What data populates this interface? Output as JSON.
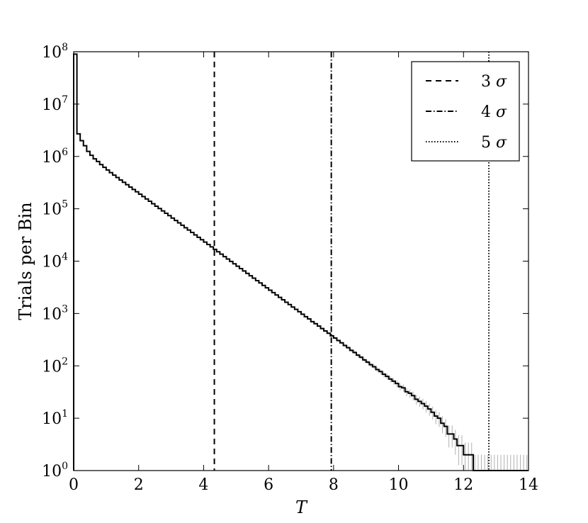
{
  "chart_data": {
    "type": "line",
    "xlabel": "T",
    "ylabel": "Trials per Bin",
    "xlim": [
      0,
      14
    ],
    "ylim": [
      1,
      100000000
    ],
    "yscale": "log",
    "grid": false,
    "legend_position": "top-right",
    "x_ticks": [
      "0",
      "2",
      "4",
      "6",
      "8",
      "10",
      "12",
      "14"
    ],
    "y_ticks": [
      {
        "base": "10",
        "exp": "0"
      },
      {
        "base": "10",
        "exp": "1"
      },
      {
        "base": "10",
        "exp": "2"
      },
      {
        "base": "10",
        "exp": "3"
      },
      {
        "base": "10",
        "exp": "4"
      },
      {
        "base": "10",
        "exp": "5"
      },
      {
        "base": "10",
        "exp": "6"
      },
      {
        "base": "10",
        "exp": "7"
      },
      {
        "base": "10",
        "exp": "8"
      }
    ],
    "bin_width": 0.1,
    "histogram": {
      "x_edges_start": 0,
      "counts": [
        90000000,
        2700000,
        2000000,
        1600000,
        1250000,
        1050000,
        900000,
        800000,
        700000,
        620000,
        550000,
        490000,
        440000,
        395000,
        355000,
        320000,
        288000,
        260000,
        234000,
        211000,
        190000,
        171000,
        154000,
        139000,
        125000,
        112000,
        101000,
        91000,
        82000,
        74000,
        66500,
        59800,
        53800,
        48400,
        43500,
        39200,
        35300,
        31700,
        28500,
        25700,
        23100,
        20800,
        18700,
        16800,
        15100,
        13600,
        12200,
        11000,
        9900,
        8900,
        8000,
        7200,
        6500,
        5850,
        5250,
        4730,
        4250,
        3830,
        3440,
        3100,
        2790,
        2510,
        2260,
        2030,
        1830,
        1640,
        1480,
        1330,
        1200,
        1080,
        970,
        870,
        790,
        700,
        640,
        575,
        515,
        465,
        420,
        375,
        340,
        305,
        275,
        245,
        222,
        198,
        180,
        160,
        146,
        130,
        118,
        105,
        96,
        85,
        78,
        69,
        63,
        56,
        51,
        46,
        40,
        38,
        32,
        30,
        27,
        23,
        21,
        19,
        17,
        15,
        13,
        11,
        10,
        8,
        7,
        5,
        5,
        4,
        3,
        3,
        2,
        2,
        2,
        1,
        1,
        1,
        1,
        1,
        1,
        1,
        1,
        1,
        1,
        1,
        1,
        1,
        1,
        1,
        1,
        1
      ]
    },
    "vlines": [
      {
        "name": "3 σ",
        "x": 4.33,
        "style": "dashed"
      },
      {
        "name": "4 σ",
        "x": 7.93,
        "style": "dashdot"
      },
      {
        "name": "5 σ",
        "x": 12.78,
        "style": "dotted"
      }
    ],
    "legend": [
      {
        "label_num": "3",
        "label_sym": "σ",
        "style": "dashed"
      },
      {
        "label_num": "4",
        "label_sym": "σ",
        "style": "dashdot"
      },
      {
        "label_num": "5",
        "label_sym": "σ",
        "style": "dotted"
      }
    ],
    "colors": {
      "line": "#000000",
      "error_bars": "#b0b0b0"
    }
  }
}
